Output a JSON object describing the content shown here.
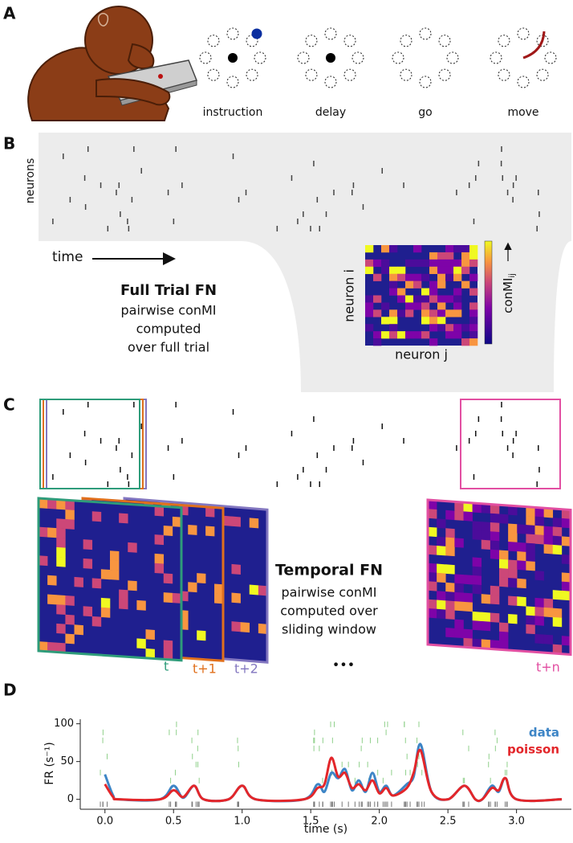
{
  "panel_a": {
    "label": "A",
    "stages": [
      "instruction",
      "delay",
      "go",
      "move"
    ]
  },
  "panel_b": {
    "label": "B",
    "y_label": "neurons",
    "x_label": "time",
    "title": "Full Trial FN",
    "description": [
      "pairwise conMI",
      "computed",
      "over full trial"
    ],
    "heatmap_y_label": "neuron i",
    "heatmap_x_label": "neuron j",
    "colorbar_label": "conMI",
    "colorbar_subscript": "ij"
  },
  "panel_c": {
    "label": "C",
    "title": "Temporal FN",
    "description": [
      "pairwise conMI",
      "computed over",
      "sliding window"
    ],
    "window_labels": [
      "t",
      "t+1",
      "t+2",
      "t+n"
    ],
    "ellipsis": "•••"
  },
  "chart_data": {
    "type": "line",
    "label": "D",
    "x_label": "time (s)",
    "y_label": "FR (s⁻¹)",
    "x": [
      0.0,
      0.06,
      0.1,
      0.4,
      0.5,
      0.57,
      0.65,
      0.72,
      0.9,
      1.0,
      1.1,
      1.45,
      1.55,
      1.6,
      1.65,
      1.7,
      1.75,
      1.8,
      1.85,
      1.9,
      1.95,
      2.0,
      2.05,
      2.1,
      2.2,
      2.25,
      2.3,
      2.38,
      2.5,
      2.62,
      2.7,
      2.75,
      2.82,
      2.87,
      2.92,
      3.0,
      3.33
    ],
    "series": [
      {
        "name": "data",
        "color": "#3d85c6",
        "values": [
          33,
          5,
          0,
          0,
          18,
          2,
          18,
          0,
          0,
          18,
          0,
          0,
          20,
          10,
          35,
          28,
          40,
          12,
          25,
          10,
          35,
          10,
          18,
          5,
          20,
          30,
          73,
          10,
          0,
          18,
          0,
          0,
          18,
          10,
          28,
          0,
          0
        ]
      },
      {
        "name": "poisson",
        "color": "#e3262a",
        "values": [
          20,
          3,
          0,
          0,
          12,
          3,
          18,
          0,
          0,
          18,
          0,
          0,
          15,
          20,
          55,
          30,
          35,
          15,
          20,
          12,
          25,
          8,
          15,
          5,
          15,
          35,
          65,
          10,
          0,
          18,
          0,
          0,
          15,
          12,
          28,
          0,
          0
        ]
      }
    ],
    "xlim": [
      -0.18,
      3.4
    ],
    "ylim": [
      -11,
      106
    ],
    "xticks": [
      {
        "value": 0,
        "label": "0.0"
      },
      0.5,
      {
        "value": 1,
        "label": "1.0"
      },
      1.5,
      {
        "value": 2,
        "label": "2.0"
      },
      2.5,
      {
        "value": 3,
        "label": "3.0"
      }
    ],
    "yticks": [
      0,
      50,
      100
    ]
  }
}
